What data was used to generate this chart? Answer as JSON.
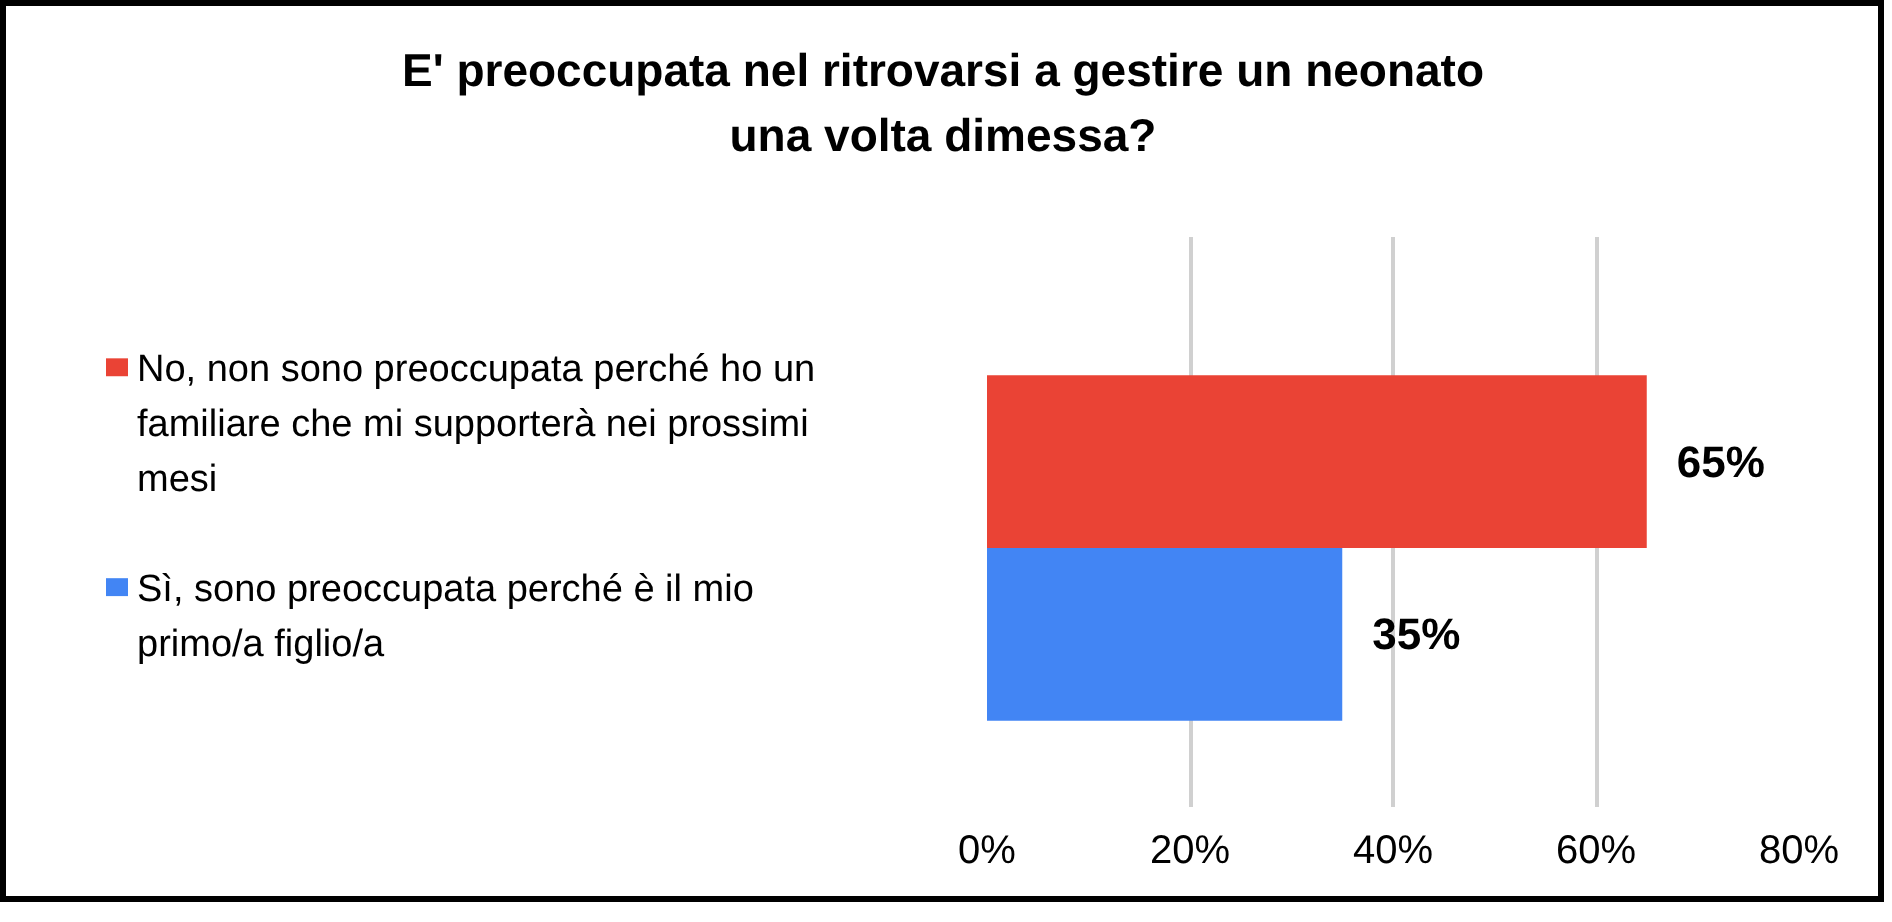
{
  "chart_data": {
    "type": "bar",
    "orientation": "horizontal",
    "title": "E' preoccupata nel ritrovarsi a gestire un neonato\nuna volta dimessa?",
    "categories": [
      null
    ],
    "series": [
      {
        "name": "No, non sono preoccupata perché ho un familiare che mi supporterà nei prossimi mesi",
        "color": "#ea4335",
        "values": [
          65
        ],
        "value_labels": [
          "65%"
        ]
      },
      {
        "name": "Sì, sono preoccupata perché è il mio primo/a figlio/a",
        "color": "#4285f4",
        "values": [
          35
        ],
        "value_labels": [
          "35%"
        ]
      }
    ],
    "xlim": [
      0,
      80
    ],
    "xticks": [
      {
        "value": 0,
        "label": "0%"
      },
      {
        "value": 20,
        "label": "20%"
      },
      {
        "value": 40,
        "label": "40%"
      },
      {
        "value": 60,
        "label": "60%"
      },
      {
        "value": 80,
        "label": "80%"
      }
    ],
    "tick_labels": "x",
    "grid": "x",
    "legend": "left"
  }
}
